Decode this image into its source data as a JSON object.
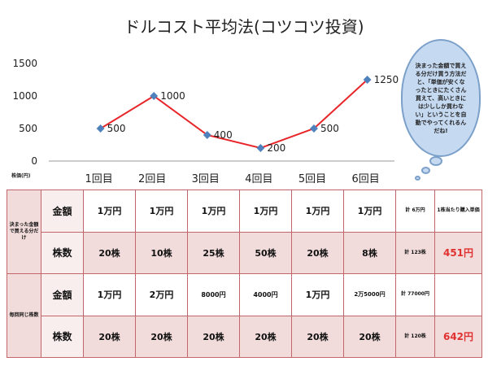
{
  "chart_data": {
    "type": "line",
    "title": "ドルコスト平均法(コツコツ投資)",
    "categories": [
      "1回目",
      "2回目",
      "3回目",
      "4回目",
      "5回目",
      "6回目"
    ],
    "values": [
      500,
      1000,
      400,
      200,
      500,
      1250
    ],
    "value_labels": [
      "500",
      "1000",
      "400",
      "200",
      "500",
      "1250"
    ],
    "ylim": [
      0,
      1500
    ],
    "yticks": [
      "0",
      "500",
      "1000",
      "1500"
    ],
    "grid": false,
    "line_color": "#e8262a",
    "marker_color": "#4f81bd"
  },
  "unit_label": "株価(円)",
  "bubble_text": "決まった金額で買える分だけ買う方法だと、「単価が安くなったときにたくさん買えて、高いときには少ししか買わない」ということを自動でやってくれるんだね!",
  "table": {
    "group1_label": "決まった金額で買える分だけ",
    "group2_label": "毎回同じ株数",
    "row_amount": "金額",
    "row_shares": "株数",
    "g1_amounts": [
      "1万円",
      "1万円",
      "1万円",
      "1万円",
      "1万円",
      "1万円"
    ],
    "g1_shares": [
      "20株",
      "10株",
      "25株",
      "50株",
      "20株",
      "8株"
    ],
    "g2_amounts": [
      "1万円",
      "2万円",
      "8000円",
      "4000円",
      "1万円",
      "2万5000円"
    ],
    "g2_shares": [
      "20株",
      "20株",
      "20株",
      "20株",
      "20株",
      "20株"
    ],
    "g1_total_amount": "計 6万円",
    "g1_total_shares": "計 123株",
    "g2_total_amount": "計 77000円",
    "g2_total_shares": "計 120株",
    "avg_header": "1株当たり購入単価",
    "g1_avg": "451円",
    "g2_avg": "642円"
  },
  "colors": {
    "accent_red": "#e03030",
    "table_pink": "#f2dcdb",
    "bubble_blue": "#c5d9f1"
  }
}
